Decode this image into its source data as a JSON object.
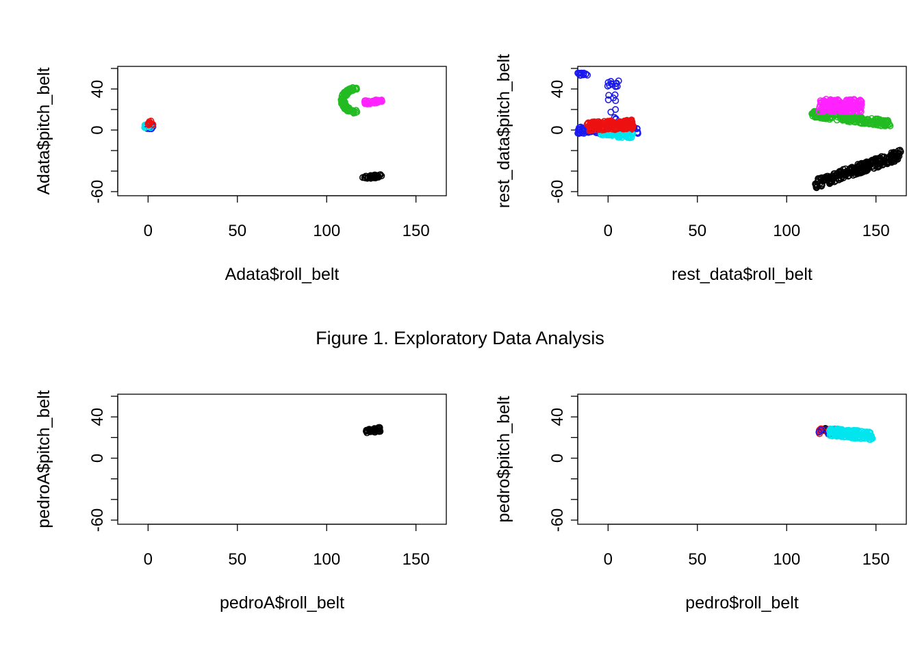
{
  "figure_title": "Figure 1. Exploratory Data Analysis",
  "colors": {
    "black": "#000000",
    "green": "#22bb22",
    "magenta": "#ff22ff",
    "blue": "#1a1aee",
    "cyan": "#00e5ee",
    "red": "#ee1111"
  },
  "chart_data": [
    {
      "type": "scatter",
      "title": "",
      "xlabel": "Adata$roll_belt",
      "ylabel": "Adata$pitch_belt",
      "xlim": [
        -17,
        167
      ],
      "ylim": [
        -64,
        62
      ],
      "x_ticks": [
        0,
        50,
        100,
        150
      ],
      "y_ticks": [
        -60,
        -40,
        -20,
        0,
        20,
        40,
        60
      ],
      "y_tick_labels": [
        "-60",
        "40",
        "0"
      ],
      "grid": false,
      "point_style": "open-circle",
      "clusters": [
        {
          "color": "black",
          "count": 40,
          "x_range": [
            120,
            131
          ],
          "y_range": [
            -48,
            -43
          ],
          "trend": 0.4
        },
        {
          "color": "green",
          "count": 90,
          "x_range": [
            106,
            124
          ],
          "y_range": [
            16,
            42
          ],
          "shape": "C"
        },
        {
          "color": "magenta",
          "count": 40,
          "x_range": [
            121,
            131
          ],
          "y_range": [
            25,
            30
          ],
          "trend": 0.3
        },
        {
          "color": "blue",
          "count": 12,
          "x_range": [
            -1,
            3
          ],
          "y_range": [
            1,
            6
          ]
        },
        {
          "color": "cyan",
          "count": 10,
          "x_range": [
            -2,
            2
          ],
          "y_range": [
            2,
            6
          ]
        },
        {
          "color": "red",
          "count": 10,
          "x_range": [
            0,
            3
          ],
          "y_range": [
            5,
            9
          ]
        }
      ]
    },
    {
      "type": "scatter",
      "title": "",
      "xlabel": "rest_data$roll_belt",
      "ylabel": "rest_data$pitch_belt",
      "xlim": [
        -17,
        167
      ],
      "ylim": [
        -64,
        62
      ],
      "x_ticks": [
        0,
        50,
        100,
        150
      ],
      "y_ticks": [
        -60,
        -40,
        -20,
        0,
        20,
        40,
        60
      ],
      "y_tick_labels": [
        "-60",
        "40",
        "0"
      ],
      "grid": false,
      "point_style": "open-circle",
      "clusters": [
        {
          "color": "black",
          "count": 260,
          "x_range": [
            116,
            164
          ],
          "y_range": [
            -57,
            -19
          ],
          "trend": 0.75
        },
        {
          "color": "green",
          "count": 230,
          "x_range": [
            114,
            158
          ],
          "y_range": [
            3,
            19
          ],
          "trend": -0.6
        },
        {
          "color": "magenta",
          "count": 180,
          "x_range": [
            118,
            142
          ],
          "y_range": [
            18,
            30
          ],
          "trend": 0
        },
        {
          "color": "blue",
          "count": 120,
          "x_range": [
            -17,
            17
          ],
          "y_range": [
            -4,
            3
          ]
        },
        {
          "color": "blue",
          "count": 14,
          "x_range": [
            -17,
            -11
          ],
          "y_range": [
            53,
            57
          ]
        },
        {
          "color": "blue",
          "count": 12,
          "x_range": [
            -1,
            6
          ],
          "y_range": [
            42,
            49
          ]
        },
        {
          "color": "blue",
          "count": 10,
          "x_range": [
            0,
            5
          ],
          "y_range": [
            8,
            35
          ],
          "vertical": true
        },
        {
          "color": "cyan",
          "count": 90,
          "x_range": [
            -4,
            14
          ],
          "y_range": [
            -9,
            2
          ],
          "trend": -0.4
        },
        {
          "color": "red",
          "count": 170,
          "x_range": [
            -12,
            14
          ],
          "y_range": [
            -1,
            10
          ],
          "trend": 0.2
        }
      ]
    },
    {
      "type": "scatter",
      "title": "",
      "xlabel": "pedroA$roll_belt",
      "ylabel": "pedroA$pitch_belt",
      "xlim": [
        -17,
        167
      ],
      "ylim": [
        -64,
        62
      ],
      "x_ticks": [
        0,
        50,
        100,
        150
      ],
      "y_ticks": [
        -60,
        -40,
        -20,
        0,
        20,
        40,
        60
      ],
      "y_tick_labels": [
        "-60",
        "40",
        "0"
      ],
      "grid": false,
      "point_style": "open-circle",
      "clusters": [
        {
          "color": "black",
          "count": 40,
          "x_range": [
            122,
            130
          ],
          "y_range": [
            24,
            30
          ],
          "trend": 0.3
        }
      ]
    },
    {
      "type": "scatter",
      "title": "",
      "xlabel": "pedro$roll_belt",
      "ylabel": "pedro$pitch_belt",
      "xlim": [
        -17,
        167
      ],
      "ylim": [
        -64,
        62
      ],
      "x_ticks": [
        0,
        50,
        100,
        150
      ],
      "y_ticks": [
        -60,
        -40,
        -20,
        0,
        20,
        40,
        60
      ],
      "y_tick_labels": [
        "-60",
        "40",
        "0"
      ],
      "grid": false,
      "point_style": "open-circle",
      "clusters": [
        {
          "color": "black",
          "count": 14,
          "x_range": [
            118,
            130
          ],
          "y_range": [
            25,
            29
          ]
        },
        {
          "color": "red",
          "count": 16,
          "x_range": [
            118,
            128
          ],
          "y_range": [
            22,
            29
          ]
        },
        {
          "color": "blue",
          "count": 14,
          "x_range": [
            118,
            128
          ],
          "y_range": [
            23,
            28
          ]
        },
        {
          "color": "cyan",
          "count": 160,
          "x_range": [
            124,
            148
          ],
          "y_range": [
            18,
            29
          ],
          "trend": -0.3
        }
      ]
    }
  ]
}
